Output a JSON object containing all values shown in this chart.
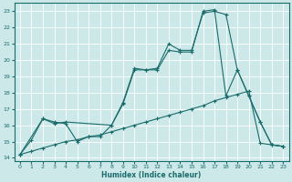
{
  "xlabel": "Humidex (Indice chaleur)",
  "xlim": [
    -0.5,
    23.5
  ],
  "ylim": [
    13.8,
    23.5
  ],
  "yticks": [
    14,
    15,
    16,
    17,
    18,
    19,
    20,
    21,
    22,
    23
  ],
  "xticks": [
    0,
    1,
    2,
    3,
    4,
    5,
    6,
    7,
    8,
    9,
    10,
    11,
    12,
    13,
    14,
    15,
    16,
    17,
    18,
    19,
    20,
    21,
    22,
    23
  ],
  "bg_color": "#cce8e8",
  "line_color": "#1a6b6b",
  "grid_color": "#ffffff",
  "line1_x": [
    0,
    1,
    2,
    3,
    4,
    5,
    6,
    7,
    8,
    9,
    10,
    11,
    12,
    13,
    14,
    15,
    16,
    17,
    18,
    19,
    20,
    21,
    22,
    23
  ],
  "line1_y": [
    14.2,
    15.1,
    16.4,
    16.2,
    16.1,
    15.0,
    15.3,
    15.3,
    16.0,
    17.3,
    19.4,
    19.4,
    19.4,
    20.6,
    20.5,
    20.5,
    23.0,
    23.1,
    17.8,
    19.4,
    17.8,
    16.2,
    14.8,
    14.7
  ],
  "line2_x": [
    0,
    2,
    3,
    4,
    8,
    9,
    10,
    11,
    12,
    13,
    14,
    15,
    16,
    17,
    18,
    19,
    20,
    21,
    22,
    23
  ],
  "line2_y": [
    14.2,
    16.4,
    16.1,
    16.2,
    16.0,
    17.4,
    19.5,
    19.4,
    19.5,
    21.0,
    20.6,
    20.6,
    22.9,
    23.0,
    22.8,
    19.4,
    17.8,
    16.2,
    14.8,
    14.7
  ],
  "line3_x": [
    0,
    1,
    2,
    3,
    4,
    5,
    6,
    7,
    8,
    9,
    10,
    11,
    12,
    13,
    14,
    15,
    16,
    17,
    18,
    19,
    20,
    21,
    22,
    23
  ],
  "line3_y": [
    14.2,
    14.4,
    14.6,
    14.8,
    15.0,
    15.1,
    15.3,
    15.4,
    15.6,
    15.8,
    16.0,
    16.2,
    16.4,
    16.6,
    16.8,
    17.0,
    17.2,
    17.5,
    17.7,
    17.9,
    18.1,
    14.9,
    14.8,
    14.7
  ]
}
